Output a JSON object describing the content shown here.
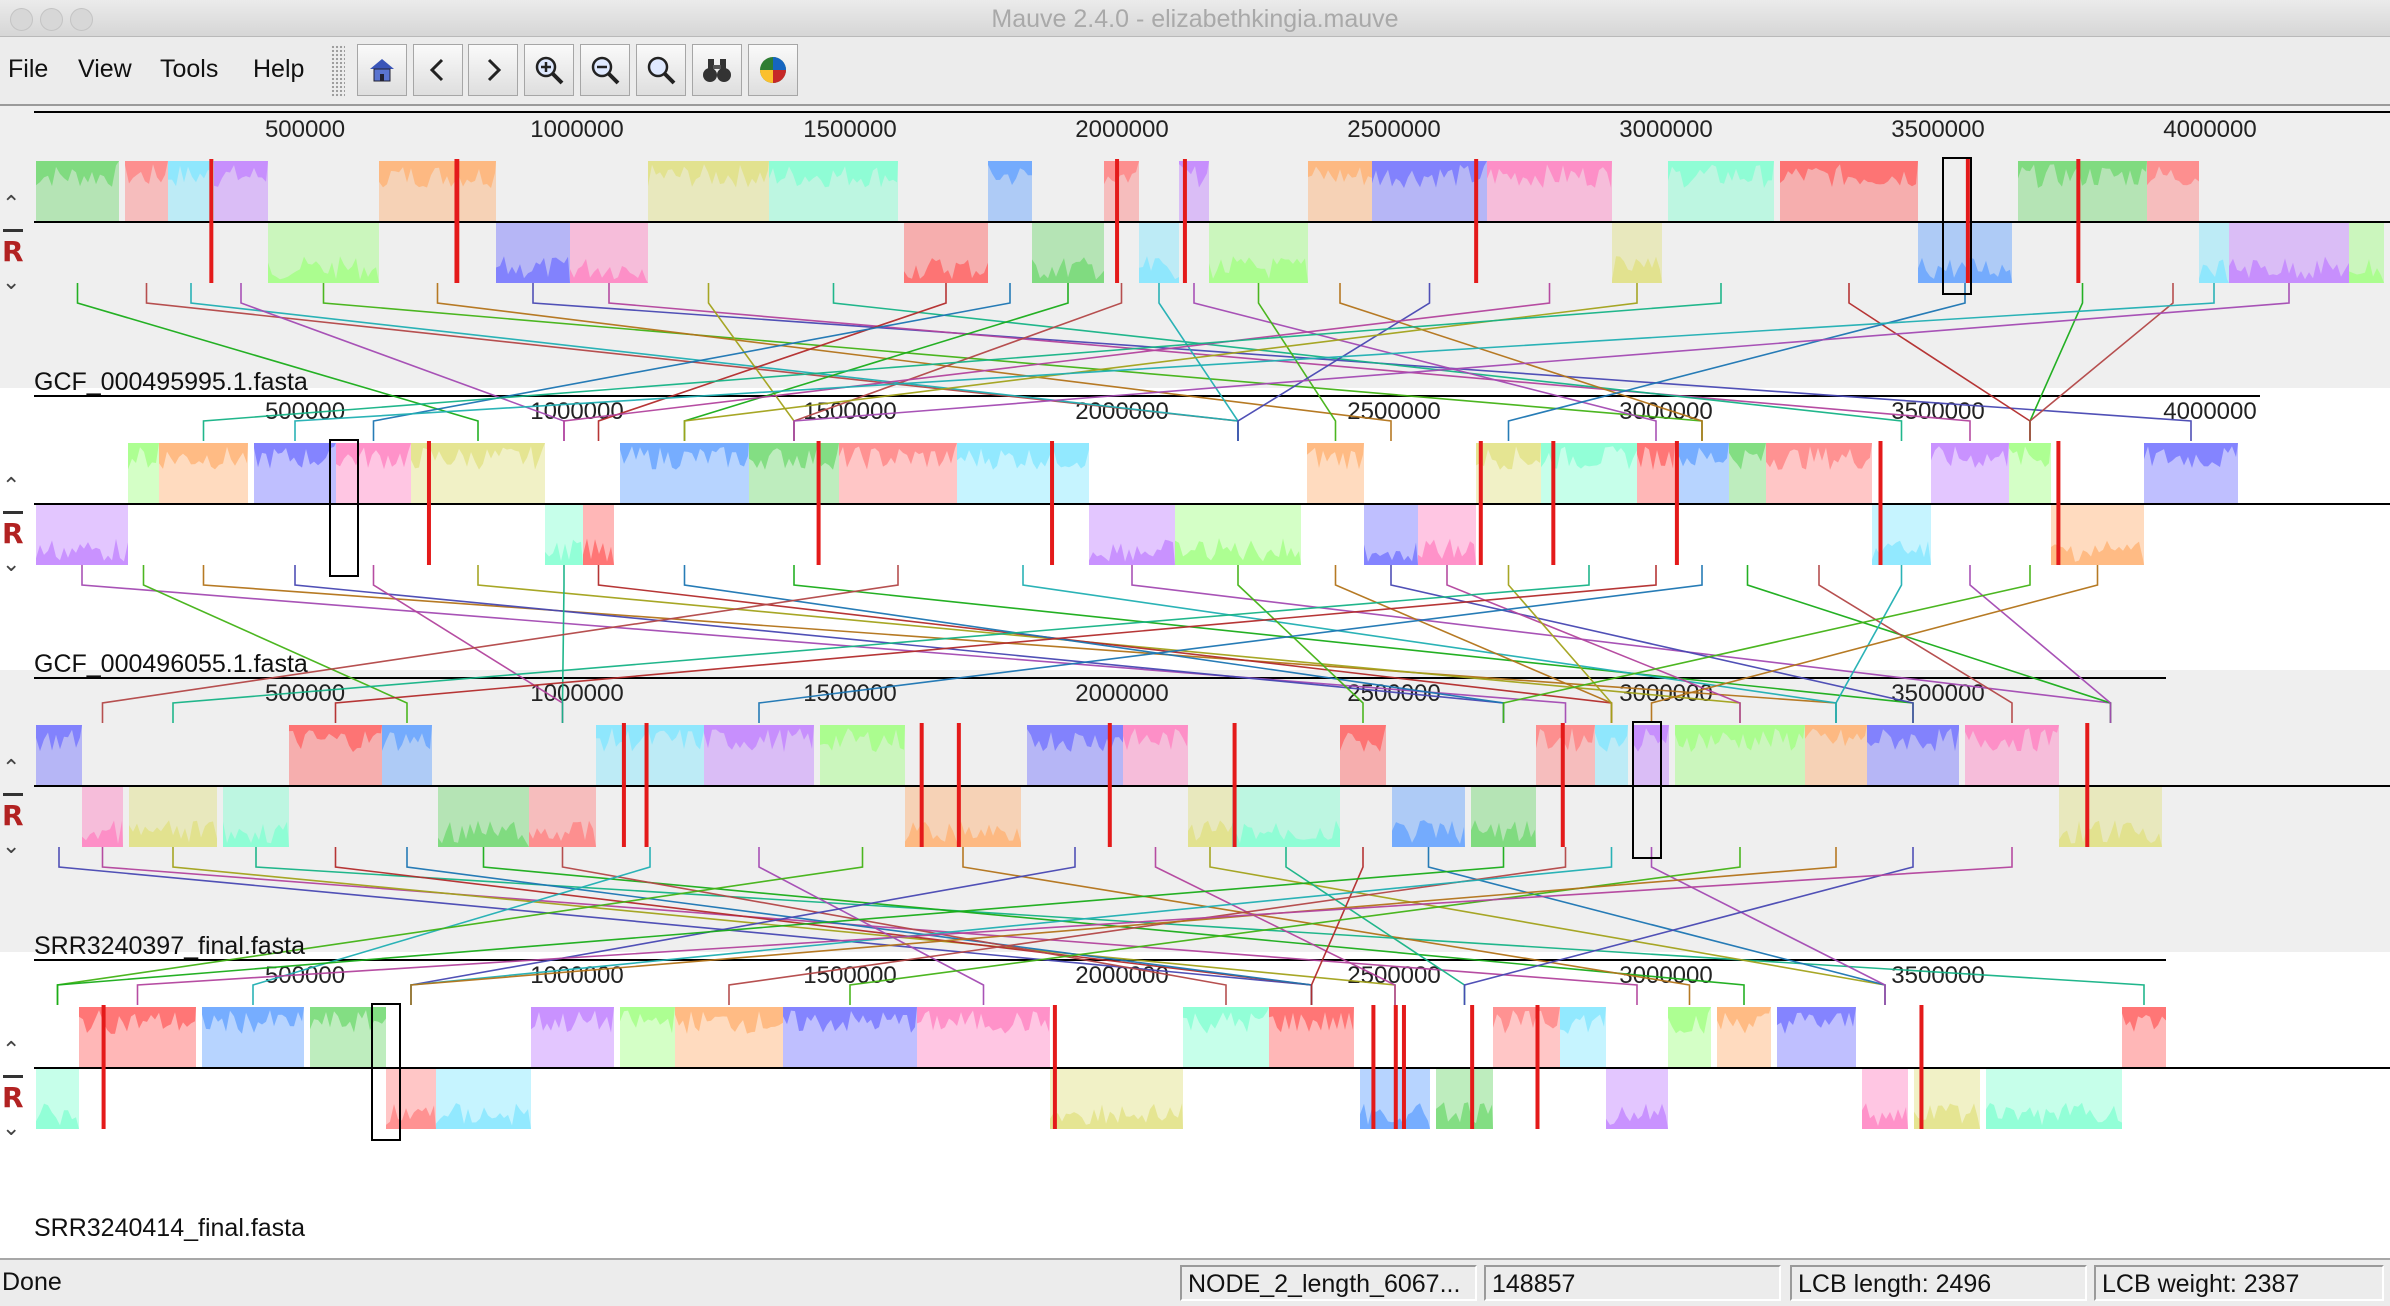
{
  "window": {
    "title": "Mauve 2.4.0 - elizabethkingia.mauve"
  },
  "menu": {
    "file": "File",
    "view": "View",
    "tools": "Tools",
    "help": "Help"
  },
  "toolbar": {
    "buttons": [
      "home-icon",
      "scroll-left-icon",
      "scroll-right-icon",
      "zoom-in-icon",
      "zoom-out-icon",
      "zoom-reset-icon",
      "binoculars-icon",
      "color-wheel-icon"
    ]
  },
  "genomes": [
    {
      "name": "GCF_000495995.1.fasta",
      "ticks": [
        "500000",
        "1000000",
        "1500000",
        "2000000",
        "2500000",
        "3000000",
        "3500000",
        "4000000"
      ],
      "reverse": "R"
    },
    {
      "name": "GCF_000496055.1.fasta",
      "ticks": [
        "500000",
        "1000000",
        "1500000",
        "2000000",
        "2500000",
        "3000000",
        "3500000",
        "4000000"
      ],
      "reverse": "R"
    },
    {
      "name": "SRR3240397_final.fasta",
      "ticks": [
        "500000",
        "1000000",
        "1500000",
        "2000000",
        "2500000",
        "3000000",
        "3500000"
      ],
      "reverse": "R"
    },
    {
      "name": "SRR3240414_final.fasta",
      "ticks": [
        "500000",
        "1000000",
        "1500000",
        "2000000",
        "2500000",
        "3000000",
        "3500000"
      ],
      "reverse": "R"
    }
  ],
  "colors": {
    "lcb_palette": [
      "#6fd86f",
      "#ff8080",
      "#80e6ff",
      "#c080ff",
      "#a0ff80",
      "#ffb070",
      "#7070ff",
      "#ff80c0",
      "#e0e080",
      "#80ffd0",
      "#ff6060",
      "#60a0ff"
    ]
  },
  "status": {
    "message": "Done",
    "contig": "NODE_2_length_6067...",
    "position": "148857",
    "lcb_length": "LCB length: 2496",
    "lcb_weight": "LCB weight: 2387"
  }
}
